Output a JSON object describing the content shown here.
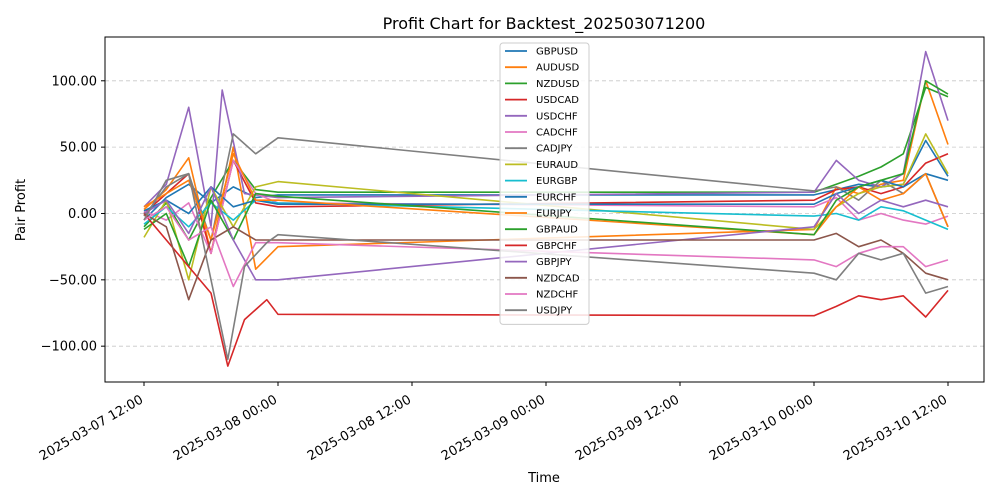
{
  "chart_data": {
    "type": "line",
    "title": "Profit Chart for Backtest_202503071200",
    "xlabel": "Time",
    "ylabel": "Pair Profit",
    "ylim": [
      -127,
      133
    ],
    "xlim": [
      "2025-03-07 12:00",
      "2025-03-10 12:00"
    ],
    "y_ticks": [
      -100,
      -50,
      0,
      50,
      100
    ],
    "y_tick_labels": [
      "−100.00",
      "−50.00",
      "0.00",
      "50.00",
      "100.00"
    ],
    "x_ticks": [
      "2025-03-07 12:00",
      "2025-03-08 00:00",
      "2025-03-08 12:00",
      "2025-03-09 00:00",
      "2025-03-09 12:00",
      "2025-03-10 00:00",
      "2025-03-10 12:00"
    ],
    "grid": "horizontal dashed",
    "legend_position": "top-center",
    "series": [
      {
        "name": "GBPUSD",
        "color": "#1f77b4",
        "points": [
          [
            "2025-03-07 12:00",
            -5
          ],
          [
            "2025-03-07 14:00",
            12
          ],
          [
            "2025-03-07 16:00",
            22
          ],
          [
            "2025-03-07 18:00",
            8
          ],
          [
            "2025-03-07 20:00",
            20
          ],
          [
            "2025-03-07 22:00",
            12
          ],
          [
            "2025-03-08 00:00",
            14
          ],
          [
            "2025-03-10 00:00",
            14
          ],
          [
            "2025-03-10 02:00",
            18
          ],
          [
            "2025-03-10 04:00",
            22
          ],
          [
            "2025-03-10 06:00",
            20
          ],
          [
            "2025-03-10 08:00",
            22
          ],
          [
            "2025-03-10 10:00",
            55
          ],
          [
            "2025-03-10 12:00",
            28
          ]
        ]
      },
      {
        "name": "AUDUSD",
        "color": "#ff7f0e",
        "points": [
          [
            "2025-03-07 12:00",
            3
          ],
          [
            "2025-03-07 14:00",
            18
          ],
          [
            "2025-03-07 16:00",
            42
          ],
          [
            "2025-03-07 18:00",
            -30
          ],
          [
            "2025-03-07 20:00",
            50
          ],
          [
            "2025-03-07 22:00",
            -42
          ],
          [
            "2025-03-08 00:00",
            -25
          ],
          [
            "2025-03-10 00:00",
            -12
          ],
          [
            "2025-03-10 02:00",
            20
          ],
          [
            "2025-03-10 04:00",
            15
          ],
          [
            "2025-03-10 06:00",
            22
          ],
          [
            "2025-03-10 08:00",
            25
          ],
          [
            "2025-03-10 10:00",
            100
          ],
          [
            "2025-03-10 12:00",
            52
          ]
        ]
      },
      {
        "name": "NZDUSD",
        "color": "#2ca02c",
        "points": [
          [
            "2025-03-07 12:00",
            -10
          ],
          [
            "2025-03-07 14:00",
            8
          ],
          [
            "2025-03-07 16:00",
            -20
          ],
          [
            "2025-03-07 18:00",
            12
          ],
          [
            "2025-03-07 20:00",
            40
          ],
          [
            "2025-03-07 22:00",
            18
          ],
          [
            "2025-03-08 00:00",
            16
          ],
          [
            "2025-03-10 00:00",
            16
          ],
          [
            "2025-03-10 02:00",
            22
          ],
          [
            "2025-03-10 04:00",
            28
          ],
          [
            "2025-03-10 06:00",
            35
          ],
          [
            "2025-03-10 08:00",
            45
          ],
          [
            "2025-03-10 10:00",
            95
          ],
          [
            "2025-03-10 12:00",
            88
          ]
        ]
      },
      {
        "name": "USDCAD",
        "color": "#d62728",
        "points": [
          [
            "2025-03-07 12:00",
            0
          ],
          [
            "2025-03-07 14:00",
            15
          ],
          [
            "2025-03-07 16:00",
            30
          ],
          [
            "2025-03-07 18:00",
            -30
          ],
          [
            "2025-03-07 20:00",
            40
          ],
          [
            "2025-03-07 22:00",
            8
          ],
          [
            "2025-03-08 00:00",
            5
          ],
          [
            "2025-03-10 00:00",
            10
          ],
          [
            "2025-03-10 02:00",
            18
          ],
          [
            "2025-03-10 04:00",
            20
          ],
          [
            "2025-03-10 06:00",
            15
          ],
          [
            "2025-03-10 08:00",
            20
          ],
          [
            "2025-03-10 10:00",
            38
          ],
          [
            "2025-03-10 12:00",
            45
          ]
        ]
      },
      {
        "name": "USDCHF",
        "color": "#9467bd",
        "points": [
          [
            "2025-03-07 12:00",
            5
          ],
          [
            "2025-03-07 14:00",
            22
          ],
          [
            "2025-03-07 16:00",
            80
          ],
          [
            "2025-03-07 18:00",
            -10
          ],
          [
            "2025-03-07 19:00",
            93
          ],
          [
            "2025-03-07 21:00",
            15
          ],
          [
            "2025-03-08 00:00",
            12
          ],
          [
            "2025-03-10 00:00",
            16
          ],
          [
            "2025-03-10 02:00",
            40
          ],
          [
            "2025-03-10 04:00",
            25
          ],
          [
            "2025-03-10 06:00",
            20
          ],
          [
            "2025-03-10 08:00",
            30
          ],
          [
            "2025-03-10 10:00",
            122
          ],
          [
            "2025-03-10 12:00",
            70
          ]
        ]
      },
      {
        "name": "CADCHF",
        "color": "#e377c2",
        "points": [
          [
            "2025-03-07 12:00",
            2
          ],
          [
            "2025-03-07 14:00",
            -5
          ],
          [
            "2025-03-07 16:00",
            8
          ],
          [
            "2025-03-07 18:00",
            -30
          ],
          [
            "2025-03-07 20:00",
            40
          ],
          [
            "2025-03-07 22:00",
            15
          ],
          [
            "2025-03-08 00:00",
            8
          ],
          [
            "2025-03-10 00:00",
            5
          ],
          [
            "2025-03-10 02:00",
            12
          ],
          [
            "2025-03-10 04:00",
            -5
          ],
          [
            "2025-03-10 06:00",
            0
          ],
          [
            "2025-03-10 08:00",
            -5
          ],
          [
            "2025-03-10 10:00",
            -8
          ],
          [
            "2025-03-10 12:00",
            -2
          ]
        ]
      },
      {
        "name": "CADJPY",
        "color": "#7f7f7f",
        "points": [
          [
            "2025-03-07 12:00",
            -2
          ],
          [
            "2025-03-07 14:00",
            20
          ],
          [
            "2025-03-07 16:00",
            30
          ],
          [
            "2025-03-07 18:00",
            -20
          ],
          [
            "2025-03-07 20:00",
            60
          ],
          [
            "2025-03-07 22:00",
            45
          ],
          [
            "2025-03-08 00:00",
            57
          ],
          [
            "2025-03-10 00:00",
            17
          ],
          [
            "2025-03-10 02:00",
            20
          ],
          [
            "2025-03-10 04:00",
            10
          ],
          [
            "2025-03-10 06:00",
            25
          ],
          [
            "2025-03-10 08:00",
            15
          ],
          [
            "2025-03-10 10:00",
            30
          ],
          [
            "2025-03-10 12:00",
            -10
          ]
        ]
      },
      {
        "name": "EURAUD",
        "color": "#bcbd22",
        "points": [
          [
            "2025-03-07 12:00",
            -18
          ],
          [
            "2025-03-07 14:00",
            10
          ],
          [
            "2025-03-07 16:00",
            -50
          ],
          [
            "2025-03-07 18:00",
            20
          ],
          [
            "2025-03-07 20:00",
            -10
          ],
          [
            "2025-03-07 22:00",
            20
          ],
          [
            "2025-03-08 00:00",
            24
          ],
          [
            "2025-03-10 00:00",
            -12
          ],
          [
            "2025-03-10 02:00",
            5
          ],
          [
            "2025-03-10 04:00",
            15
          ],
          [
            "2025-03-10 06:00",
            20
          ],
          [
            "2025-03-10 08:00",
            22
          ],
          [
            "2025-03-10 10:00",
            60
          ],
          [
            "2025-03-10 12:00",
            30
          ]
        ]
      },
      {
        "name": "EURGBP",
        "color": "#17becf",
        "points": [
          [
            "2025-03-07 12:00",
            -8
          ],
          [
            "2025-03-07 14:00",
            5
          ],
          [
            "2025-03-07 16:00",
            -10
          ],
          [
            "2025-03-07 18:00",
            8
          ],
          [
            "2025-03-07 20:00",
            -5
          ],
          [
            "2025-03-07 22:00",
            10
          ],
          [
            "2025-03-08 00:00",
            8
          ],
          [
            "2025-03-10 00:00",
            -2
          ],
          [
            "2025-03-10 02:00",
            0
          ],
          [
            "2025-03-10 04:00",
            -5
          ],
          [
            "2025-03-10 06:00",
            5
          ],
          [
            "2025-03-10 08:00",
            2
          ],
          [
            "2025-03-10 10:00",
            -5
          ],
          [
            "2025-03-10 12:00",
            -12
          ]
        ]
      },
      {
        "name": "EURCHF",
        "color": "#1f77b4",
        "points": [
          [
            "2025-03-07 12:00",
            2
          ],
          [
            "2025-03-07 14:00",
            10
          ],
          [
            "2025-03-07 16:00",
            0
          ],
          [
            "2025-03-07 18:00",
            20
          ],
          [
            "2025-03-07 20:00",
            5
          ],
          [
            "2025-03-07 22:00",
            10
          ],
          [
            "2025-03-08 00:00",
            7
          ],
          [
            "2025-03-10 00:00",
            7
          ],
          [
            "2025-03-10 02:00",
            15
          ],
          [
            "2025-03-10 04:00",
            20
          ],
          [
            "2025-03-10 06:00",
            25
          ],
          [
            "2025-03-10 08:00",
            20
          ],
          [
            "2025-03-10 10:00",
            30
          ],
          [
            "2025-03-10 12:00",
            25
          ]
        ]
      },
      {
        "name": "EURJPY",
        "color": "#ff7f0e",
        "points": [
          [
            "2025-03-07 12:00",
            5
          ],
          [
            "2025-03-07 14:00",
            15
          ],
          [
            "2025-03-07 16:00",
            25
          ],
          [
            "2025-03-07 18:00",
            -20
          ],
          [
            "2025-03-07 20:00",
            45
          ],
          [
            "2025-03-07 22:00",
            10
          ],
          [
            "2025-03-08 00:00",
            10
          ],
          [
            "2025-03-10 00:00",
            -16
          ],
          [
            "2025-03-10 02:00",
            5
          ],
          [
            "2025-03-10 04:00",
            20
          ],
          [
            "2025-03-10 06:00",
            10
          ],
          [
            "2025-03-10 08:00",
            15
          ],
          [
            "2025-03-10 10:00",
            30
          ],
          [
            "2025-03-10 12:00",
            -10
          ]
        ]
      },
      {
        "name": "GBPAUD",
        "color": "#2ca02c",
        "points": [
          [
            "2025-03-07 12:00",
            -12
          ],
          [
            "2025-03-07 14:00",
            0
          ],
          [
            "2025-03-07 16:00",
            -40
          ],
          [
            "2025-03-07 18:00",
            10
          ],
          [
            "2025-03-07 20:00",
            -20
          ],
          [
            "2025-03-07 22:00",
            15
          ],
          [
            "2025-03-08 00:00",
            13
          ],
          [
            "2025-03-10 00:00",
            -16
          ],
          [
            "2025-03-10 02:00",
            10
          ],
          [
            "2025-03-10 04:00",
            20
          ],
          [
            "2025-03-10 06:00",
            25
          ],
          [
            "2025-03-10 08:00",
            30
          ],
          [
            "2025-03-10 10:00",
            100
          ],
          [
            "2025-03-10 12:00",
            90
          ]
        ]
      },
      {
        "name": "GBPCHF",
        "color": "#d62728",
        "points": [
          [
            "2025-03-07 12:00",
            0
          ],
          [
            "2025-03-07 14:00",
            -20
          ],
          [
            "2025-03-07 16:00",
            -40
          ],
          [
            "2025-03-07 18:00",
            -60
          ],
          [
            "2025-03-07 19:30",
            -115
          ],
          [
            "2025-03-07 21:00",
            -80
          ],
          [
            "2025-03-07 23:00",
            -65
          ],
          [
            "2025-03-08 00:00",
            -76
          ],
          [
            "2025-03-10 00:00",
            -77
          ],
          [
            "2025-03-10 02:00",
            -70
          ],
          [
            "2025-03-10 04:00",
            -62
          ],
          [
            "2025-03-10 06:00",
            -65
          ],
          [
            "2025-03-10 08:00",
            -62
          ],
          [
            "2025-03-10 10:00",
            -78
          ],
          [
            "2025-03-10 12:00",
            -58
          ]
        ]
      },
      {
        "name": "GBPJPY",
        "color": "#9467bd",
        "points": [
          [
            "2025-03-07 12:00",
            0
          ],
          [
            "2025-03-07 14:00",
            10
          ],
          [
            "2025-03-07 16:00",
            -15
          ],
          [
            "2025-03-07 18:00",
            20
          ],
          [
            "2025-03-07 20:00",
            -20
          ],
          [
            "2025-03-07 22:00",
            -50
          ],
          [
            "2025-03-08 00:00",
            -50
          ],
          [
            "2025-03-10 00:00",
            -10
          ],
          [
            "2025-03-10 02:00",
            15
          ],
          [
            "2025-03-10 04:00",
            0
          ],
          [
            "2025-03-10 06:00",
            10
          ],
          [
            "2025-03-10 08:00",
            5
          ],
          [
            "2025-03-10 10:00",
            10
          ],
          [
            "2025-03-10 12:00",
            5
          ]
        ]
      },
      {
        "name": "NZDCAD",
        "color": "#8c564b",
        "points": [
          [
            "2025-03-07 12:00",
            0
          ],
          [
            "2025-03-07 14:00",
            -10
          ],
          [
            "2025-03-07 16:00",
            -65
          ],
          [
            "2025-03-07 18:00",
            -20
          ],
          [
            "2025-03-07 20:00",
            -10
          ],
          [
            "2025-03-07 22:00",
            -20
          ],
          [
            "2025-03-08 00:00",
            -20
          ],
          [
            "2025-03-10 00:00",
            -20
          ],
          [
            "2025-03-10 02:00",
            -15
          ],
          [
            "2025-03-10 04:00",
            -25
          ],
          [
            "2025-03-10 06:00",
            -20
          ],
          [
            "2025-03-10 08:00",
            -30
          ],
          [
            "2025-03-10 10:00",
            -45
          ],
          [
            "2025-03-10 12:00",
            -50
          ]
        ]
      },
      {
        "name": "NZDCHF",
        "color": "#e377c2",
        "points": [
          [
            "2025-03-07 12:00",
            -5
          ],
          [
            "2025-03-07 14:00",
            5
          ],
          [
            "2025-03-07 16:00",
            -20
          ],
          [
            "2025-03-07 18:00",
            -10
          ],
          [
            "2025-03-07 20:00",
            -55
          ],
          [
            "2025-03-07 22:00",
            -22
          ],
          [
            "2025-03-08 00:00",
            -22
          ],
          [
            "2025-03-10 00:00",
            -35
          ],
          [
            "2025-03-10 02:00",
            -40
          ],
          [
            "2025-03-10 04:00",
            -30
          ],
          [
            "2025-03-10 06:00",
            -25
          ],
          [
            "2025-03-10 08:00",
            -25
          ],
          [
            "2025-03-10 10:00",
            -40
          ],
          [
            "2025-03-10 12:00",
            -35
          ]
        ]
      },
      {
        "name": "USDJPY",
        "color": "#7f7f7f",
        "points": [
          [
            "2025-03-07 12:00",
            -5
          ],
          [
            "2025-03-07 14:00",
            25
          ],
          [
            "2025-03-07 16:00",
            30
          ],
          [
            "2025-03-07 18:00",
            -50
          ],
          [
            "2025-03-07 19:30",
            -110
          ],
          [
            "2025-03-07 21:00",
            -40
          ],
          [
            "2025-03-07 23:00",
            -22
          ],
          [
            "2025-03-08 00:00",
            -16
          ],
          [
            "2025-03-10 00:00",
            -45
          ],
          [
            "2025-03-10 02:00",
            -50
          ],
          [
            "2025-03-10 04:00",
            -30
          ],
          [
            "2025-03-10 06:00",
            -35
          ],
          [
            "2025-03-10 08:00",
            -30
          ],
          [
            "2025-03-10 10:00",
            -60
          ],
          [
            "2025-03-10 12:00",
            -55
          ]
        ]
      }
    ]
  }
}
